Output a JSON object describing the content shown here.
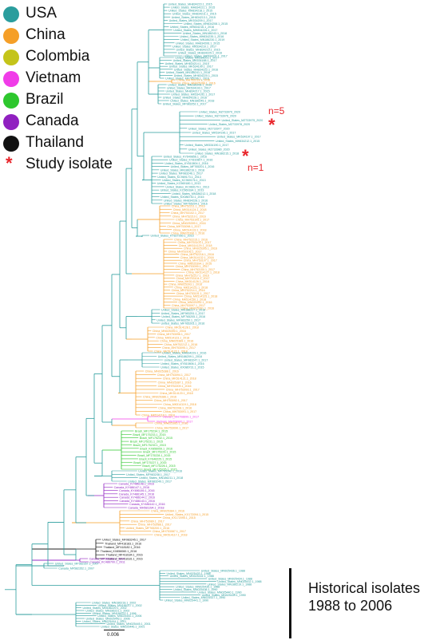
{
  "legend": [
    {
      "label": "USA",
      "color": "#2a9d9d"
    },
    {
      "label": "China",
      "color": "#f59f28"
    },
    {
      "label": "Colombia",
      "color": "#c4c41a"
    },
    {
      "label": "Vietnam",
      "color": "#f03ce8"
    },
    {
      "label": "Brazil",
      "color": "#2ec72e"
    },
    {
      "label": "Canada",
      "color": "#9020c0"
    },
    {
      "label": "Thailand",
      "color": "#111111"
    }
  ],
  "study_isolate_label": "Study isolate",
  "annotations": {
    "upper": "n=5",
    "lower": "n=1"
  },
  "historical_label": [
    "Historical isolates",
    "1988 to 2006"
  ],
  "scale_label": "0.006",
  "colors": {
    "USA": "#2a9d9d",
    "China": "#f59f28",
    "Vietnam": "#f03ce8",
    "Brazil": "#2ec72e",
    "Canada": "#9020c0",
    "Thailand": "#111111",
    "star": "#e8242a"
  },
  "clades": [
    {
      "country": "USA",
      "tips": [
        "United_States_MH834223.1_2015",
        "United_States_MH834221.1_2015",
        "United_States_MH834218.1_2015",
        "United_States_MH834211.1_2015",
        "United_States_MH834213.1_2015",
        "United_States_MK534209.1_2017",
        "United_States_MH834208.1_2015",
        "United_States_MH834216.1_2016",
        "United_States_MH834226.1_2017",
        "United_States_MN186243.1_2018",
        "United_States_MH834235.1_2016",
        "United_States_MN186230.1_2019",
        "United_States_MH834206.1_2015",
        "United_States_MK534210.1_2017",
        "United_States_MH834219.1_2015",
        "United_States_MH834225.1_2016",
        "United_States_MK534211.1_2017"
      ]
    },
    {
      "country": "USA",
      "tips": [
        "United_States_MK534201.1_2017",
        "United_States_MK534188.1_2017",
        "United_States_MH834214.1_2015",
        "United_States_MK534199.1_2017",
        "United_States_MH834222.1_2016",
        "United_States_MN186241.1_2018",
        "United_States_MH834220.1_2015",
        "United_States_MF765206.1_2016"
      ]
    },
    {
      "country": "China",
      "tips": [
        "China_MH752213.1_2016",
        "China_MN025398.1_2016"
      ]
    },
    {
      "country": "USA",
      "tips": [
        "United_States_MN186208.1_2018",
        "United_States_MK534193.1_2017",
        "United_States_MH834217.1_2015",
        "United_States_MK534192.1_2017",
        "United_States_MH834228.1_2016",
        "United_States_MN186245.1_2018",
        "United_States_MF983252.1_2017"
      ]
    },
    {
      "country": "USA",
      "tips": [
        "United_States_MZ733979_2020",
        "United_States_MZ733976_2020",
        "United_States_MZ733975_2020",
        "United_States_MZ733978_2020",
        "United_States_MZ733977_2020",
        "United_States_MK534196.1_2017",
        "United_States_MK534197.1_2017",
        "United_States_MH834212.1_2015",
        "United_States_MK534190.1_2017",
        "United_States_MZ733980_2020",
        "United_States_MN186215.1_2018"
      ]
    },
    {
      "country": "USA",
      "tips": [
        "United_States_KY649856.1_2016",
        "United_States_KY810807.1_2016",
        "United_States_KY810804.1_2016",
        "United_States_MF765201.1_2016",
        "United_States_MN186216.1_2018",
        "United_States_MF983246.1_2017",
        "United_States_KC969173.1_2013",
        "United_States_KC969176.1_2013",
        "United_States_KC969180.1_2013",
        "United_States_KC969179.1_2013",
        "United_States_KC969184.1_2013",
        "United_States_MN186212.1_2018",
        "United_States_KX086730.1_2015",
        "United_States_MH834228.1_2016",
        "United_States_MF765204.1_2016"
      ]
    },
    {
      "country": "China",
      "tips": [
        "China_MH752211.1_2016",
        "China_MK514124.1_2018",
        "China_MH753102.1_2017",
        "China_MH752210.1_2016",
        "China_MH753105.1_2017",
        "China_MN025399.1_2016",
        "China_MH753098.1_2017",
        "China_MK514133.1_2018",
        "China_MN025396.1_2016"
      ]
    },
    {
      "country": "USA",
      "tips": [
        "United_States_KT827260.1_2015"
      ]
    },
    {
      "country": "China",
      "tips": [
        "China_MH752215.1_2016",
        "China_MH753103.1_2017",
        "China_MK514129.1_2018",
        "China_MN025395.1_2016",
        "China_MH753106.1_2017",
        "China_MH752216.1_2016",
        "China_MK514132.1_2018",
        "China_MH753107.1_2017",
        "China_MN025394.1_2016",
        "China_MH753099.1_2017",
        "China_MH753100.1_2017",
        "China_MK514127.1_2018",
        "China_MH752217.1_2016",
        "China_MH753104.1_2017",
        "China_MK514126.1_2018",
        "China_MN025393.1_2016",
        "China_MK514131.1_2018",
        "China_MH752214.1_2016",
        "China_MH753101.1_2017",
        "China_MK514125.1_2018",
        "China_MK514130.1_2018",
        "China_MN025392.1_2016",
        "China_MH753097.1_2017",
        "China_MN025391.1_2016"
      ]
    },
    {
      "country": "USA",
      "tips": [
        "United_States_MN186227.1_2018",
        "United_States_MF983251.1_2017",
        "United_States_MF765205.1_2016",
        "United_States_MF983250.1_2017",
        "United_States_MF765203.1_2016"
      ]
    },
    {
      "country": "China",
      "tips": [
        "China_MK514128.1_2018",
        "China_MN025390.1_2016",
        "China_MH753096.1_2017",
        "China_MK514123.1_2018",
        "China_MN025389.1_2016",
        "China_MH752212.1_2016",
        "China_MH753095.1_2017",
        "China_MK514122.1_2018"
      ]
    },
    {
      "country": "USA",
      "tips": [
        "United_States_MH834229.1_2016",
        "United_States_MN186209.1_2018",
        "United_States_MF983247.1_2017",
        "United_States_KY810806.1_2016",
        "United_States_KX086731.1_2015"
      ]
    },
    {
      "country": "China",
      "tips": [
        "China_MN025388.1_2016",
        "China_MH753094.1_2017",
        "China_MK514121.1_2018",
        "China_MN025387.1_2016",
        "China_MH752209.1_2016",
        "China_MH753093.1_2017",
        "China_MK514120.1_2018",
        "China_MN025386.1_2016",
        "China_MH753092.1_2017",
        "China_MK514119.1_2018",
        "China_MH752208.1_2016",
        "China_MH753091.1_2017",
        "China_MK514118.1_2018"
      ]
    },
    {
      "country": "Vietnam",
      "tips": [
        "Vietnam_MH708899.1_2017",
        "Vietnam_MH708900.1_2017"
      ]
    },
    {
      "country": "China",
      "tips": [
        "China_MN025385.1_2016",
        "China_MH753090.1_2017"
      ]
    },
    {
      "country": "Brazil",
      "tips": [
        "Brazil_MF175234.1_2015",
        "Brazil_MF175233.1_2015",
        "Brazil_MF175232.1_2015",
        "Brazil_MF175231.1_2015",
        "Brazil_MF175230.1_2015",
        "Brazil_KX856059.1_2016",
        "Brazil_MF175229.1_2015",
        "Brazil_MF175228.1_2015",
        "Brazil_KY646225.1_2015",
        "Brazil_MF175227.1_2015",
        "Brazil_MF175226.1_2015",
        "Brazil_MF175225.1_2015"
      ]
    },
    {
      "country": "USA",
      "tips": [
        "United_States_MF765202.1_2016",
        "United_States_MF983248.1_2017",
        "United_States_MN186211.1_2018",
        "United_States_MF983249.1_2017"
      ]
    },
    {
      "country": "Canada",
      "tips": [
        "Canada_KY486148.1_2016",
        "Canada_KY486147.1_2016",
        "Canada_KY486146.1_2016",
        "Canada_KY486145.1_2016",
        "Canada_KY486144.1_2016",
        "Canada_KY486143.1_2016",
        "Canada_KY486142.1_2016",
        "Canada_MH581394.1_2018"
      ]
    },
    {
      "country": "China",
      "tips": [
        "China_MN025384.1_2016",
        "United_States_KX172094.1_2015",
        "China_KX172095.1_2015",
        "China_MH753089.1_2017",
        "China_MH753088.1_2017",
        "United_States_MF765200.1_2016",
        "China_MH753087.1_2017",
        "China_MK514117.1_2018"
      ]
    },
    {
      "country": "Thailand",
      "tips": [
        "United_States_MF983245.1_2017",
        "Thailand_MF418183.1_2016",
        "Thailand_MF418182.1_2016",
        "Thailand_KX856060.1_2016",
        "Thailand_MF418184.1_2016",
        "Thailand_MF418181.1_2016"
      ]
    },
    {
      "country": "Canada",
      "tips": [
        "Canada_MF582351.1_2017",
        "Canada_KC486700.1_2011"
      ]
    },
    {
      "country": "USA",
      "tips": [
        "United_States_MF582357.1_2007",
        "Canada_MF582352.1_2007"
      ]
    },
    {
      "country": "USA",
      "tips": [
        "United_States_MN025436.1_1988",
        "United_States_MN025433.1_1988",
        "United_States_MN025431.1_1988",
        "United_States_MN025434.1_1988",
        "United_States_MN025432.1_1988",
        "United_States_MN186219.1_1988",
        "United_States_MN025435.1_1988",
        "United_States_MN025438.1_1990",
        "United_States_MN025440.1_1990",
        "United_States_MN025439.1_1990",
        "United_States_MN025437.1_1990",
        "United_States_MN025441.1_1990"
      ]
    },
    {
      "country": "USA",
      "tips": [
        "United_States_MN186218.1_2002",
        "United_States_MN186217.1_2002",
        "United_States_MN186220.1_2002",
        "United_States_MN186221.1_2002",
        "United_States_MN186222.1_1996",
        "United_States_MN025442.1_2006",
        "United_States_MN025443.1_2006",
        "United_States_MN025444.1_2001",
        "United_States_MN025445.1_2001",
        "United_States_MN025446.1_2001"
      ]
    }
  ]
}
